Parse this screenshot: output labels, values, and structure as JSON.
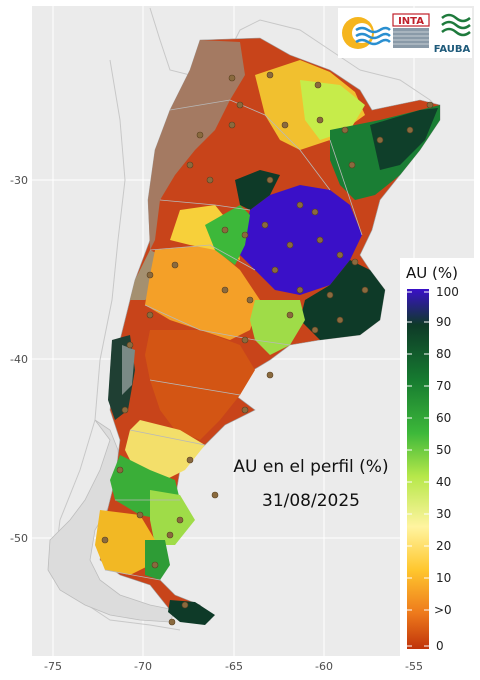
{
  "map": {
    "title": "AU en el perfil (%)",
    "date": "31/08/2025",
    "x_ticks": [
      "-75",
      "-70",
      "-65",
      "-60",
      "-55"
    ],
    "y_ticks": [
      "-30",
      "-40",
      "-50"
    ],
    "x_range": [
      -76,
      -53
    ],
    "y_range": [
      -56,
      -20
    ],
    "background_color": "#ebebeb",
    "grid_color": "#ffffff"
  },
  "legend": {
    "title": "AU (%)",
    "ticks": [
      "100",
      "90",
      "80",
      "70",
      "60",
      "50",
      "40",
      "30",
      "20",
      "10",
      ">0",
      "0"
    ],
    "color_stops": [
      "#3a10c8",
      "#0e3a28",
      "#167a30",
      "#3db83a",
      "#b6e84a",
      "#fff4a0",
      "#ffc72e",
      "#ee7a1c",
      "#c0330a"
    ],
    "no_data_color": "#a47a62"
  },
  "logos": {
    "inta_label": "INTA",
    "fauba_label": "FAUBA"
  }
}
